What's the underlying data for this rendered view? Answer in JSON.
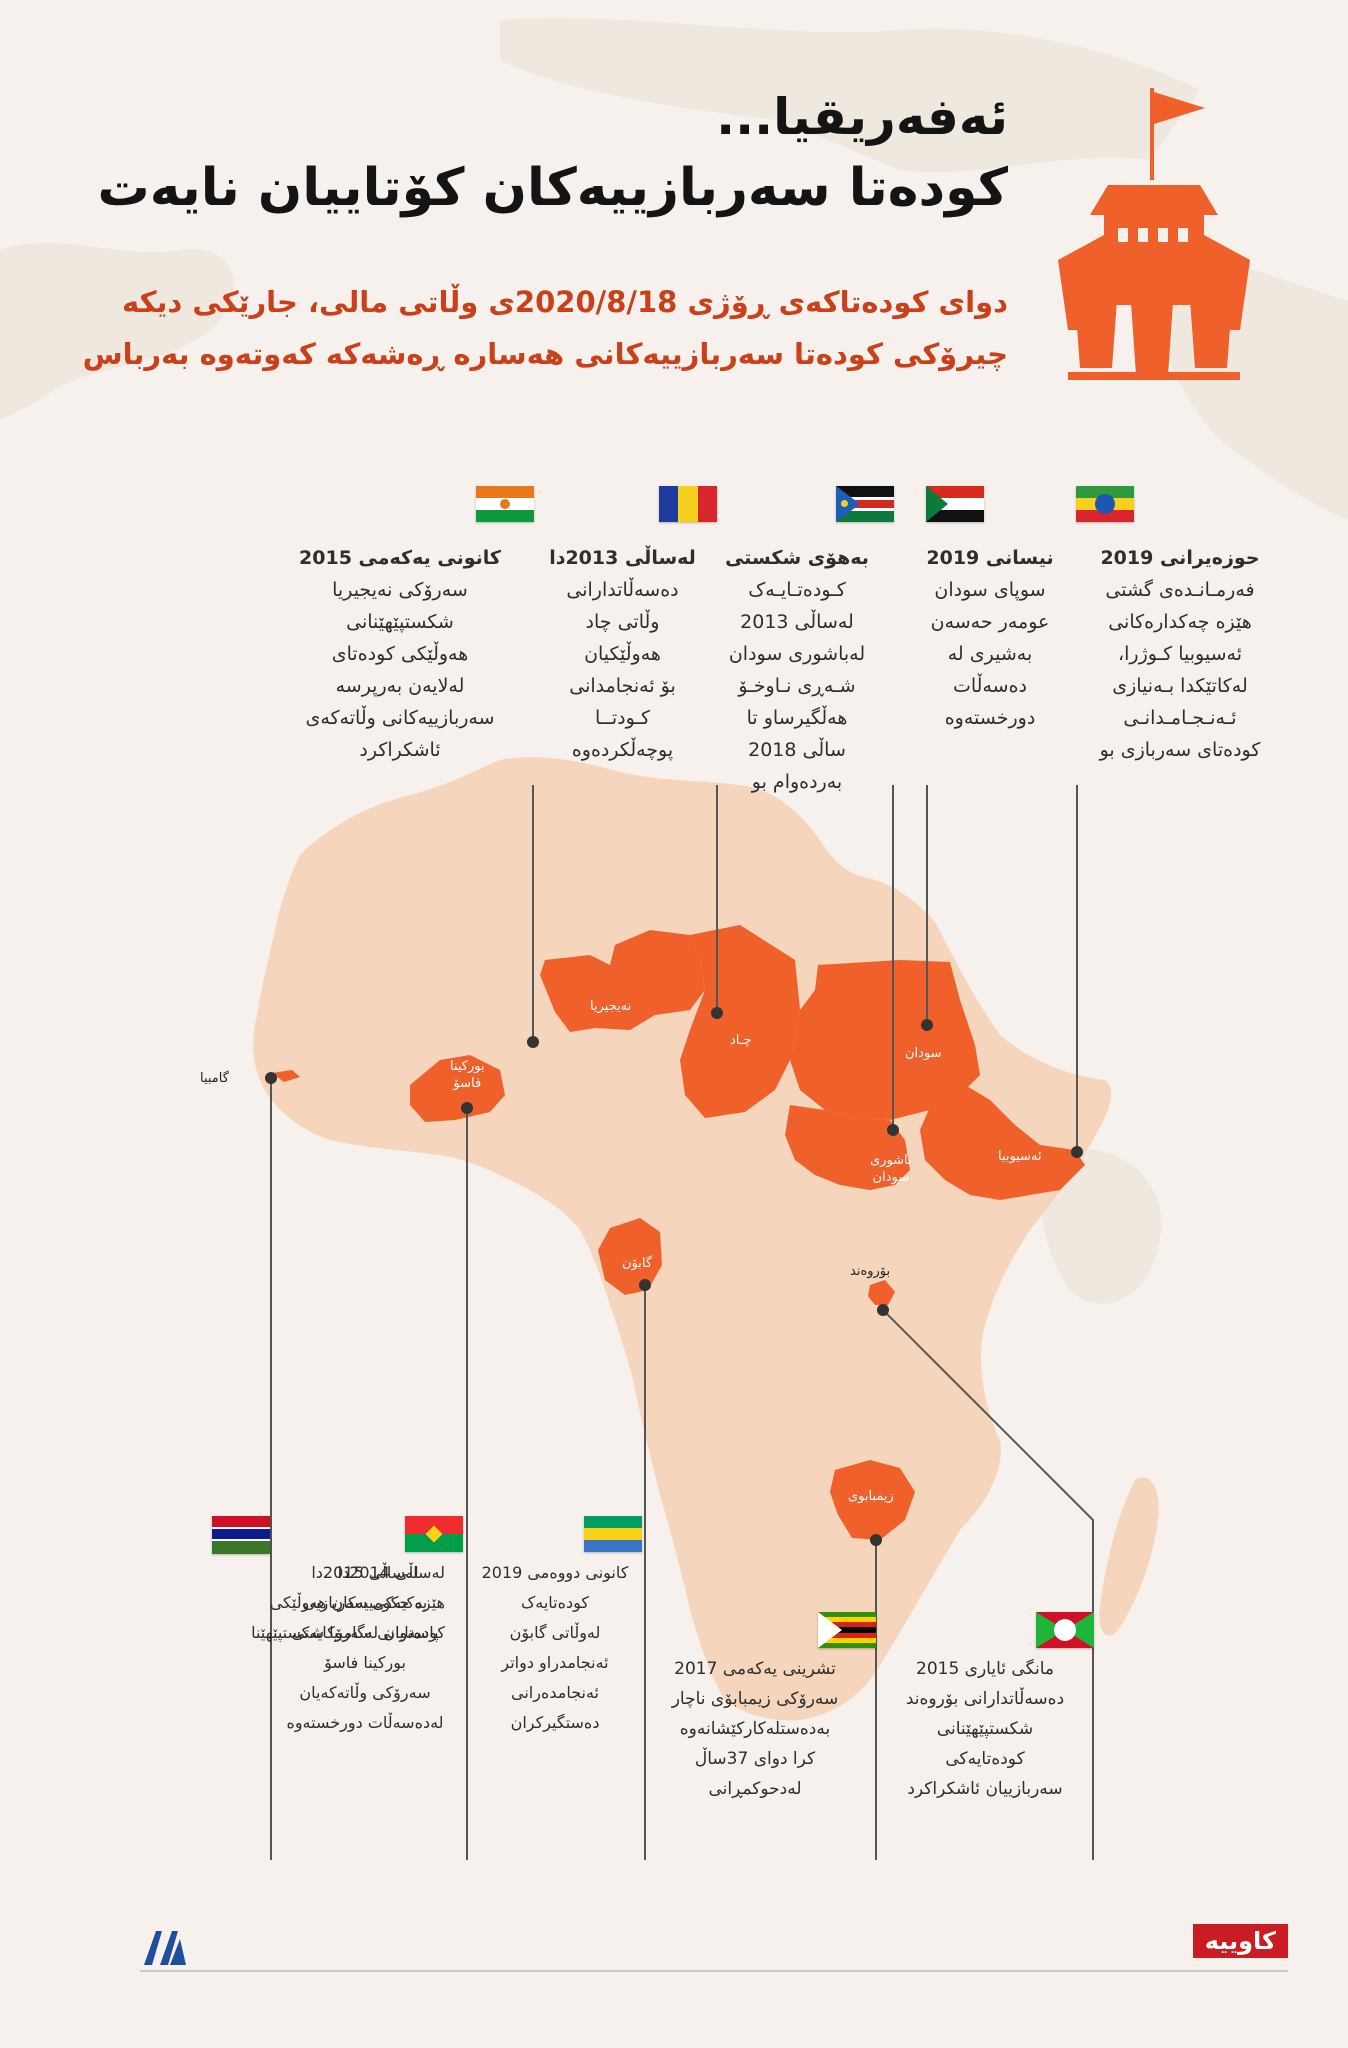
{
  "header": {
    "title_line1": "ئەفەریقیا...",
    "title_line2": "کودەتا سەربازییەکان کۆتاییان نایەت",
    "subtitle_line1": "دوای کودەتاکەی ڕۆژی  2020/8/18ی وڵاتی مالی، جارێکی دیکە",
    "subtitle_line2": "چیرۆکی کودەتا سەربازییەکانی هەسارە ڕەشەکە کەوتەوە بەرباس"
  },
  "colors": {
    "accent": "#f0602b",
    "africa_land": "#f5d5bb",
    "background": "#f6f1ec",
    "line": "#555555"
  },
  "top_events": [
    {
      "flag": "ethiopia",
      "lines": [
        "حوزەیرانی  2019",
        "فەرمـانـدەی گشتی",
        "هێزە چەکدارەکانی",
        "ئەسیوبیا کـوژرا،",
        "لەکاتێکدا بـەنیازی",
        "ئـەنـجـامـدانـی",
        "کودەتای سەربازی بو"
      ]
    },
    {
      "flag": "sudan",
      "lines": [
        "نیسانی  2019",
        "سوپای سودان",
        "عومەر حەسەن",
        "بەشیری لە",
        "دەسەڵات",
        "دورخستەوە"
      ]
    },
    {
      "flag": "south-sudan",
      "lines": [
        "بەهۆی شکستی",
        "کـودەتـایـەک",
        "لەساڵی 2013",
        "لەباشوری سودان",
        "شـەڕی نـاوخـۆ",
        "هەڵگیرساو تا",
        "ساڵی  2018",
        "بەردەوام بو"
      ]
    },
    {
      "flag": "chad",
      "lines": [
        "لەساڵی 2013دا",
        "دەسەڵاتدارانی",
        "وڵاتی چاد",
        "هەوڵێکیان",
        "بۆ ئەنجامدانی",
        "کـودتــا",
        "پوچەڵکردەوە"
      ]
    },
    {
      "flag": "niger",
      "lines": [
        "کانونی یەکەمی  2015",
        "سەرۆکی نەیجیریا",
        "شکستپێهێنانی",
        "هەوڵێکی  کودەتای",
        "لەلایەن بەرپرسە",
        "سەربازییەکانی وڵاتەکەی",
        "ئاشکراکرد"
      ]
    }
  ],
  "bottom_events": [
    {
      "flag": "gambia",
      "lines": [
        "لەساڵی 2014دا",
        "هێزە حکومییەکان هەوڵێکی",
        "کودەتایان لەگامبیا شکستپێهێنا"
      ]
    },
    {
      "flag": "burkina-faso",
      "lines": [
        "لەساڵی 2015دا",
        "یەکیەکی سەربازیی",
        "پاسەوانی سەرۆکایەتی",
        "بورکینا فاسۆ",
        "سەرۆکی وڵاتەکەیان",
        "لەدەسەڵات دورخستەوە"
      ]
    },
    {
      "flag": "gabon",
      "lines": [
        "کانونی دووەمی  2019",
        "کودەتایەک",
        "لەوڵاتی گابۆن",
        "ئەنجامدراو دواتر",
        "ئەنجامدەرانی",
        "دەستگیرکران"
      ]
    },
    {
      "flag": "zimbabwe",
      "lines": [
        "تشرینی یەکەمی 2017",
        "سەرۆکی زیمبابۆی ناچار",
        "بەدەستلەکارکێشانەوە",
        "کرا دوای  37ساڵ",
        "لەدحوکمڕانی"
      ]
    },
    {
      "flag": "burundi",
      "lines": [
        "مانگی ئایاری  2015",
        "دەسەڵاتدارانی بۆروەند",
        "شکستپێهێنانی",
        "کودەتایەکی",
        "سەربازییان ئاشکراکرد"
      ]
    }
  ],
  "map_labels": {
    "gambia": "گامبیا",
    "burkina": [
      "بورکینا",
      "فاسۆ"
    ],
    "niger": "نەیجیریا",
    "chad": "چـاد",
    "sudan": "سودان",
    "south_sudan": [
      "باشوری",
      "سودان"
    ],
    "ethiopia": "ئەسیوبیا",
    "gabon": "گابۆن",
    "burundi": "بۆروەند",
    "zimbabwe": "زیمبابوی"
  },
  "footer": {
    "source_logo": "AA",
    "brand": "کاوییە"
  }
}
